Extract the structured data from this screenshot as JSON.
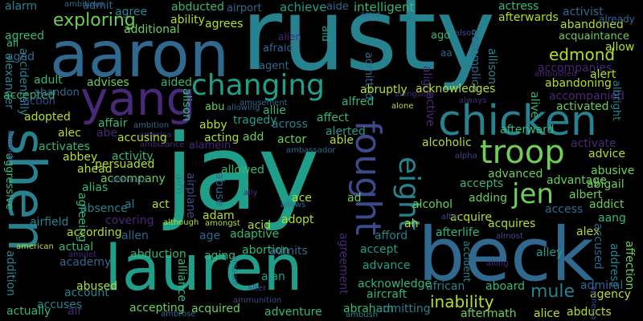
{
  "colors": {
    "background": "#000000",
    "palette": [
      "#440154",
      "#482878",
      "#3e4989",
      "#31688e",
      "#26828e",
      "#1f9e89",
      "#35b779",
      "#6ece58",
      "#b5de2b",
      "#fde725"
    ]
  },
  "words": [
    {
      "text": "rusty"
    },
    {
      "text": "jay"
    },
    {
      "text": "aaron"
    },
    {
      "text": "beck"
    },
    {
      "text": "lauren"
    },
    {
      "text": "shen"
    },
    {
      "text": "chicken"
    },
    {
      "text": "yang"
    },
    {
      "text": "changing"
    },
    {
      "text": "fought"
    },
    {
      "text": "troop"
    },
    {
      "text": "eight"
    },
    {
      "text": "jen"
    },
    {
      "text": "mule"
    },
    {
      "text": "edmond"
    },
    {
      "text": "exploring"
    },
    {
      "text": "inability"
    },
    {
      "text": "abandoned"
    },
    {
      "text": "acquaintance"
    },
    {
      "text": "allow"
    },
    {
      "text": "accident"
    },
    {
      "text": "achieve"
    },
    {
      "text": "intelligent"
    },
    {
      "text": "actress"
    },
    {
      "text": "activist"
    },
    {
      "text": "already"
    },
    {
      "text": "afterwards"
    },
    {
      "text": "aide"
    },
    {
      "text": "airport"
    },
    {
      "text": "abducted"
    },
    {
      "text": "agree"
    },
    {
      "text": "admit"
    },
    {
      "text": "alarm"
    },
    {
      "text": "ambitious"
    },
    {
      "text": "agreed"
    },
    {
      "text": "ali"
    },
    {
      "text": "aged"
    },
    {
      "text": "ability"
    },
    {
      "text": "agrees"
    },
    {
      "text": "additional"
    },
    {
      "text": "alien"
    },
    {
      "text": "afraid"
    },
    {
      "text": "agent"
    },
    {
      "text": "aid"
    },
    {
      "text": "admitted"
    },
    {
      "text": "amid"
    },
    {
      "text": "also"
    },
    {
      "text": "ago"
    },
    {
      "text": "accompanies"
    },
    {
      "text": "alert"
    },
    {
      "text": "abandoning"
    },
    {
      "text": "accompanied"
    },
    {
      "text": "albright"
    },
    {
      "text": "activated"
    },
    {
      "text": "afterward"
    },
    {
      "text": "activate"
    },
    {
      "text": "alcoholic"
    },
    {
      "text": "advice"
    },
    {
      "text": "abusive"
    },
    {
      "text": "advanced"
    },
    {
      "text": "advantage"
    },
    {
      "text": "abigail"
    },
    {
      "text": "accepts"
    },
    {
      "text": "albert"
    },
    {
      "text": "addict"
    },
    {
      "text": "access"
    },
    {
      "text": "adding"
    },
    {
      "text": "alcohol"
    },
    {
      "text": "aang"
    },
    {
      "text": "acquires"
    },
    {
      "text": "acquire"
    },
    {
      "text": "alex"
    },
    {
      "text": "afterlife"
    },
    {
      "text": "accused"
    },
    {
      "text": "address"
    },
    {
      "text": "affection"
    },
    {
      "text": "alley"
    },
    {
      "text": "admiral"
    },
    {
      "text": "agency"
    },
    {
      "text": "abducts"
    },
    {
      "text": "alice"
    },
    {
      "text": "aboard"
    },
    {
      "text": "african"
    },
    {
      "text": "acknowledge"
    },
    {
      "text": "aircraft"
    },
    {
      "text": "abraham"
    },
    {
      "text": "admitting"
    },
    {
      "text": "aftermath"
    },
    {
      "text": "adventure"
    },
    {
      "text": "acquired"
    },
    {
      "text": "accepting"
    },
    {
      "text": "ambrose"
    },
    {
      "text": "ambush"
    },
    {
      "text": "amnesia"
    },
    {
      "text": "alexander"
    },
    {
      "text": "accidentally"
    },
    {
      "text": "accepted"
    },
    {
      "text": "adult"
    },
    {
      "text": "abandon"
    },
    {
      "text": "action"
    },
    {
      "text": "advises"
    },
    {
      "text": "aided"
    },
    {
      "text": "alison"
    },
    {
      "text": "abu"
    },
    {
      "text": "allowing"
    },
    {
      "text": "ambition"
    },
    {
      "text": "abby"
    },
    {
      "text": "acting"
    },
    {
      "text": "alamein"
    },
    {
      "text": "america"
    },
    {
      "text": "alec"
    },
    {
      "text": "abe"
    },
    {
      "text": "accusing"
    },
    {
      "text": "affair"
    },
    {
      "text": "adopted"
    },
    {
      "text": "activates"
    },
    {
      "text": "abbey"
    },
    {
      "text": "ahead"
    },
    {
      "text": "activity"
    },
    {
      "text": "accompany"
    },
    {
      "text": "persuaded"
    },
    {
      "text": "aggressive"
    },
    {
      "text": "amends"
    },
    {
      "text": "alias"
    },
    {
      "text": "aim"
    },
    {
      "text": "airplane"
    },
    {
      "text": "alternate"
    },
    {
      "text": "ambulance"
    },
    {
      "text": "absence"
    },
    {
      "text": "agreeing"
    },
    {
      "text": "act"
    },
    {
      "text": "al"
    },
    {
      "text": "airfield"
    },
    {
      "text": "covering"
    },
    {
      "text": "according"
    },
    {
      "text": "allen"
    },
    {
      "text": "actual"
    },
    {
      "text": "american"
    },
    {
      "text": "amulet"
    },
    {
      "text": "academy"
    },
    {
      "text": "abduction"
    },
    {
      "text": "aging"
    },
    {
      "text": "abortion"
    },
    {
      "text": "admits"
    },
    {
      "text": "adaptive"
    },
    {
      "text": "adopt"
    },
    {
      "text": "adam"
    },
    {
      "text": "amongst"
    },
    {
      "text": "acid"
    },
    {
      "text": "ace"
    },
    {
      "text": "although"
    },
    {
      "text": "ally"
    },
    {
      "text": "allows"
    },
    {
      "text": "ad"
    },
    {
      "text": "ah"
    },
    {
      "text": "afford"
    },
    {
      "text": "accept"
    },
    {
      "text": "advance"
    },
    {
      "text": "agreement"
    },
    {
      "text": "age"
    },
    {
      "text": "alan"
    },
    {
      "text": "alter"
    },
    {
      "text": "amount"
    },
    {
      "text": "ammunition"
    },
    {
      "text": "alliance"
    },
    {
      "text": "abused"
    },
    {
      "text": "account"
    },
    {
      "text": "accuses"
    },
    {
      "text": "air"
    },
    {
      "text": "actually"
    },
    {
      "text": "addition"
    },
    {
      "text": "along"
    },
    {
      "text": "almost"
    },
    {
      "text": "altar"
    },
    {
      "text": "alpha"
    },
    {
      "text": "accomplice"
    },
    {
      "text": "allison"
    },
    {
      "text": "align"
    },
    {
      "text": "always"
    },
    {
      "text": "alone"
    },
    {
      "text": "alongside"
    },
    {
      "text": "ambushed"
    },
    {
      "text": "alive"
    },
    {
      "text": "acknowledges"
    },
    {
      "text": "abruptly"
    },
    {
      "text": "alfred"
    },
    {
      "text": "affect"
    },
    {
      "text": "alerted"
    },
    {
      "text": "able"
    },
    {
      "text": "actor"
    },
    {
      "text": "add"
    },
    {
      "text": "allie"
    },
    {
      "text": "across"
    },
    {
      "text": "tragedy"
    },
    {
      "text": "amusement"
    },
    {
      "text": "ambassador"
    },
    {
      "text": "allowed"
    },
    {
      "text": "abuse"
    },
    {
      "text": "active"
    },
    {
      "text": "aa"
    }
  ]
}
